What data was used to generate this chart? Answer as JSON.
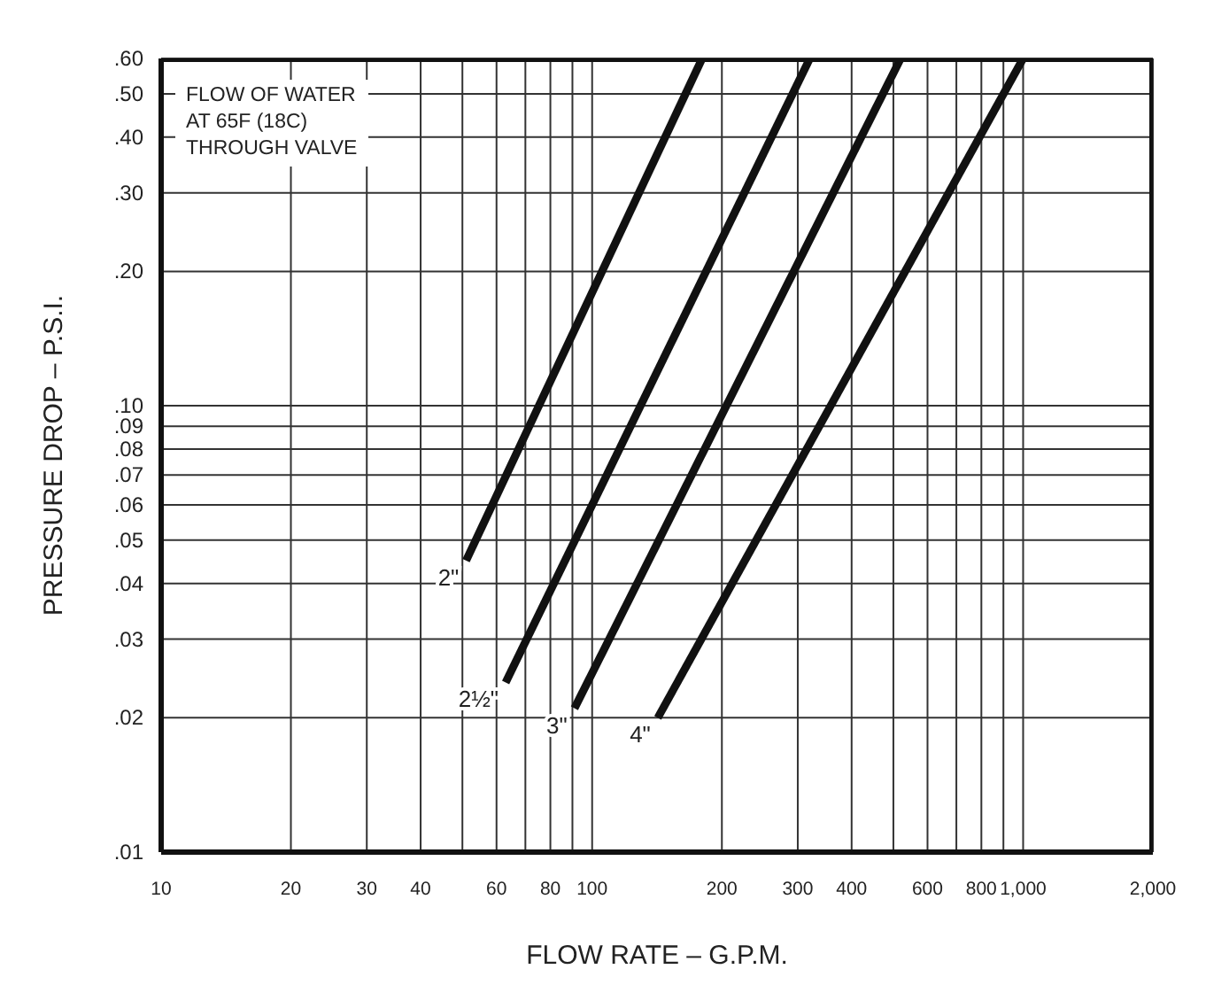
{
  "chart_data": {
    "type": "line",
    "xlabel": "FLOW RATE – G.P.M.",
    "ylabel": "PRESSURE DROP – P.S.I.",
    "log": "xy",
    "grid": true,
    "legend": false,
    "marker": "none",
    "line_style": "solid",
    "annotations": [
      "FLOW OF WATER\nAT 65F (18C)\nTHROUGH VALVE"
    ],
    "xlim": [
      10,
      2000
    ],
    "ylim": [
      0.01,
      0.6
    ],
    "xticks": [
      10,
      20,
      30,
      40,
      {
        "value": 50,
        "label": null
      },
      60,
      {
        "value": 70,
        "label": null
      },
      80,
      {
        "value": 90,
        "label": null
      },
      100,
      200,
      300,
      400,
      {
        "value": 500,
        "label": null
      },
      600,
      {
        "value": 700,
        "label": null
      },
      800,
      {
        "value": 900,
        "label": null
      },
      {
        "value": 1000,
        "label": "1,000"
      },
      {
        "value": 2000,
        "label": "2,000"
      }
    ],
    "yticks": [
      {
        "value": 0.01,
        "label": ".01"
      },
      {
        "value": 0.02,
        "label": ".02"
      },
      {
        "value": 0.03,
        "label": ".03"
      },
      {
        "value": 0.04,
        "label": ".04"
      },
      {
        "value": 0.05,
        "label": ".05"
      },
      {
        "value": 0.06,
        "label": ".06"
      },
      {
        "value": 0.07,
        "label": ".07"
      },
      {
        "value": 0.08,
        "label": ".08"
      },
      {
        "value": 0.09,
        "label": ".09"
      },
      {
        "value": 0.1,
        "label": ".10"
      },
      {
        "value": 0.2,
        "label": ".20"
      },
      {
        "value": 0.3,
        "label": ".30"
      },
      {
        "value": 0.4,
        "label": ".40"
      },
      {
        "value": 0.5,
        "label": ".50"
      },
      {
        "value": 0.6,
        "label": ".60"
      }
    ],
    "series": [
      {
        "name": "2\"",
        "color": "#111111",
        "x": [
          51,
          180
        ],
        "values": [
          0.045,
          0.6
        ]
      },
      {
        "name": "2½\"",
        "color": "#111111",
        "x": [
          63,
          320
        ],
        "values": [
          0.024,
          0.6
        ]
      },
      {
        "name": "3\"",
        "color": "#111111",
        "x": [
          91,
          520
        ],
        "values": [
          0.021,
          0.6
        ]
      },
      {
        "name": "4\"",
        "color": "#111111",
        "x": [
          142,
          1000
        ],
        "values": [
          0.02,
          0.6
        ]
      }
    ]
  }
}
